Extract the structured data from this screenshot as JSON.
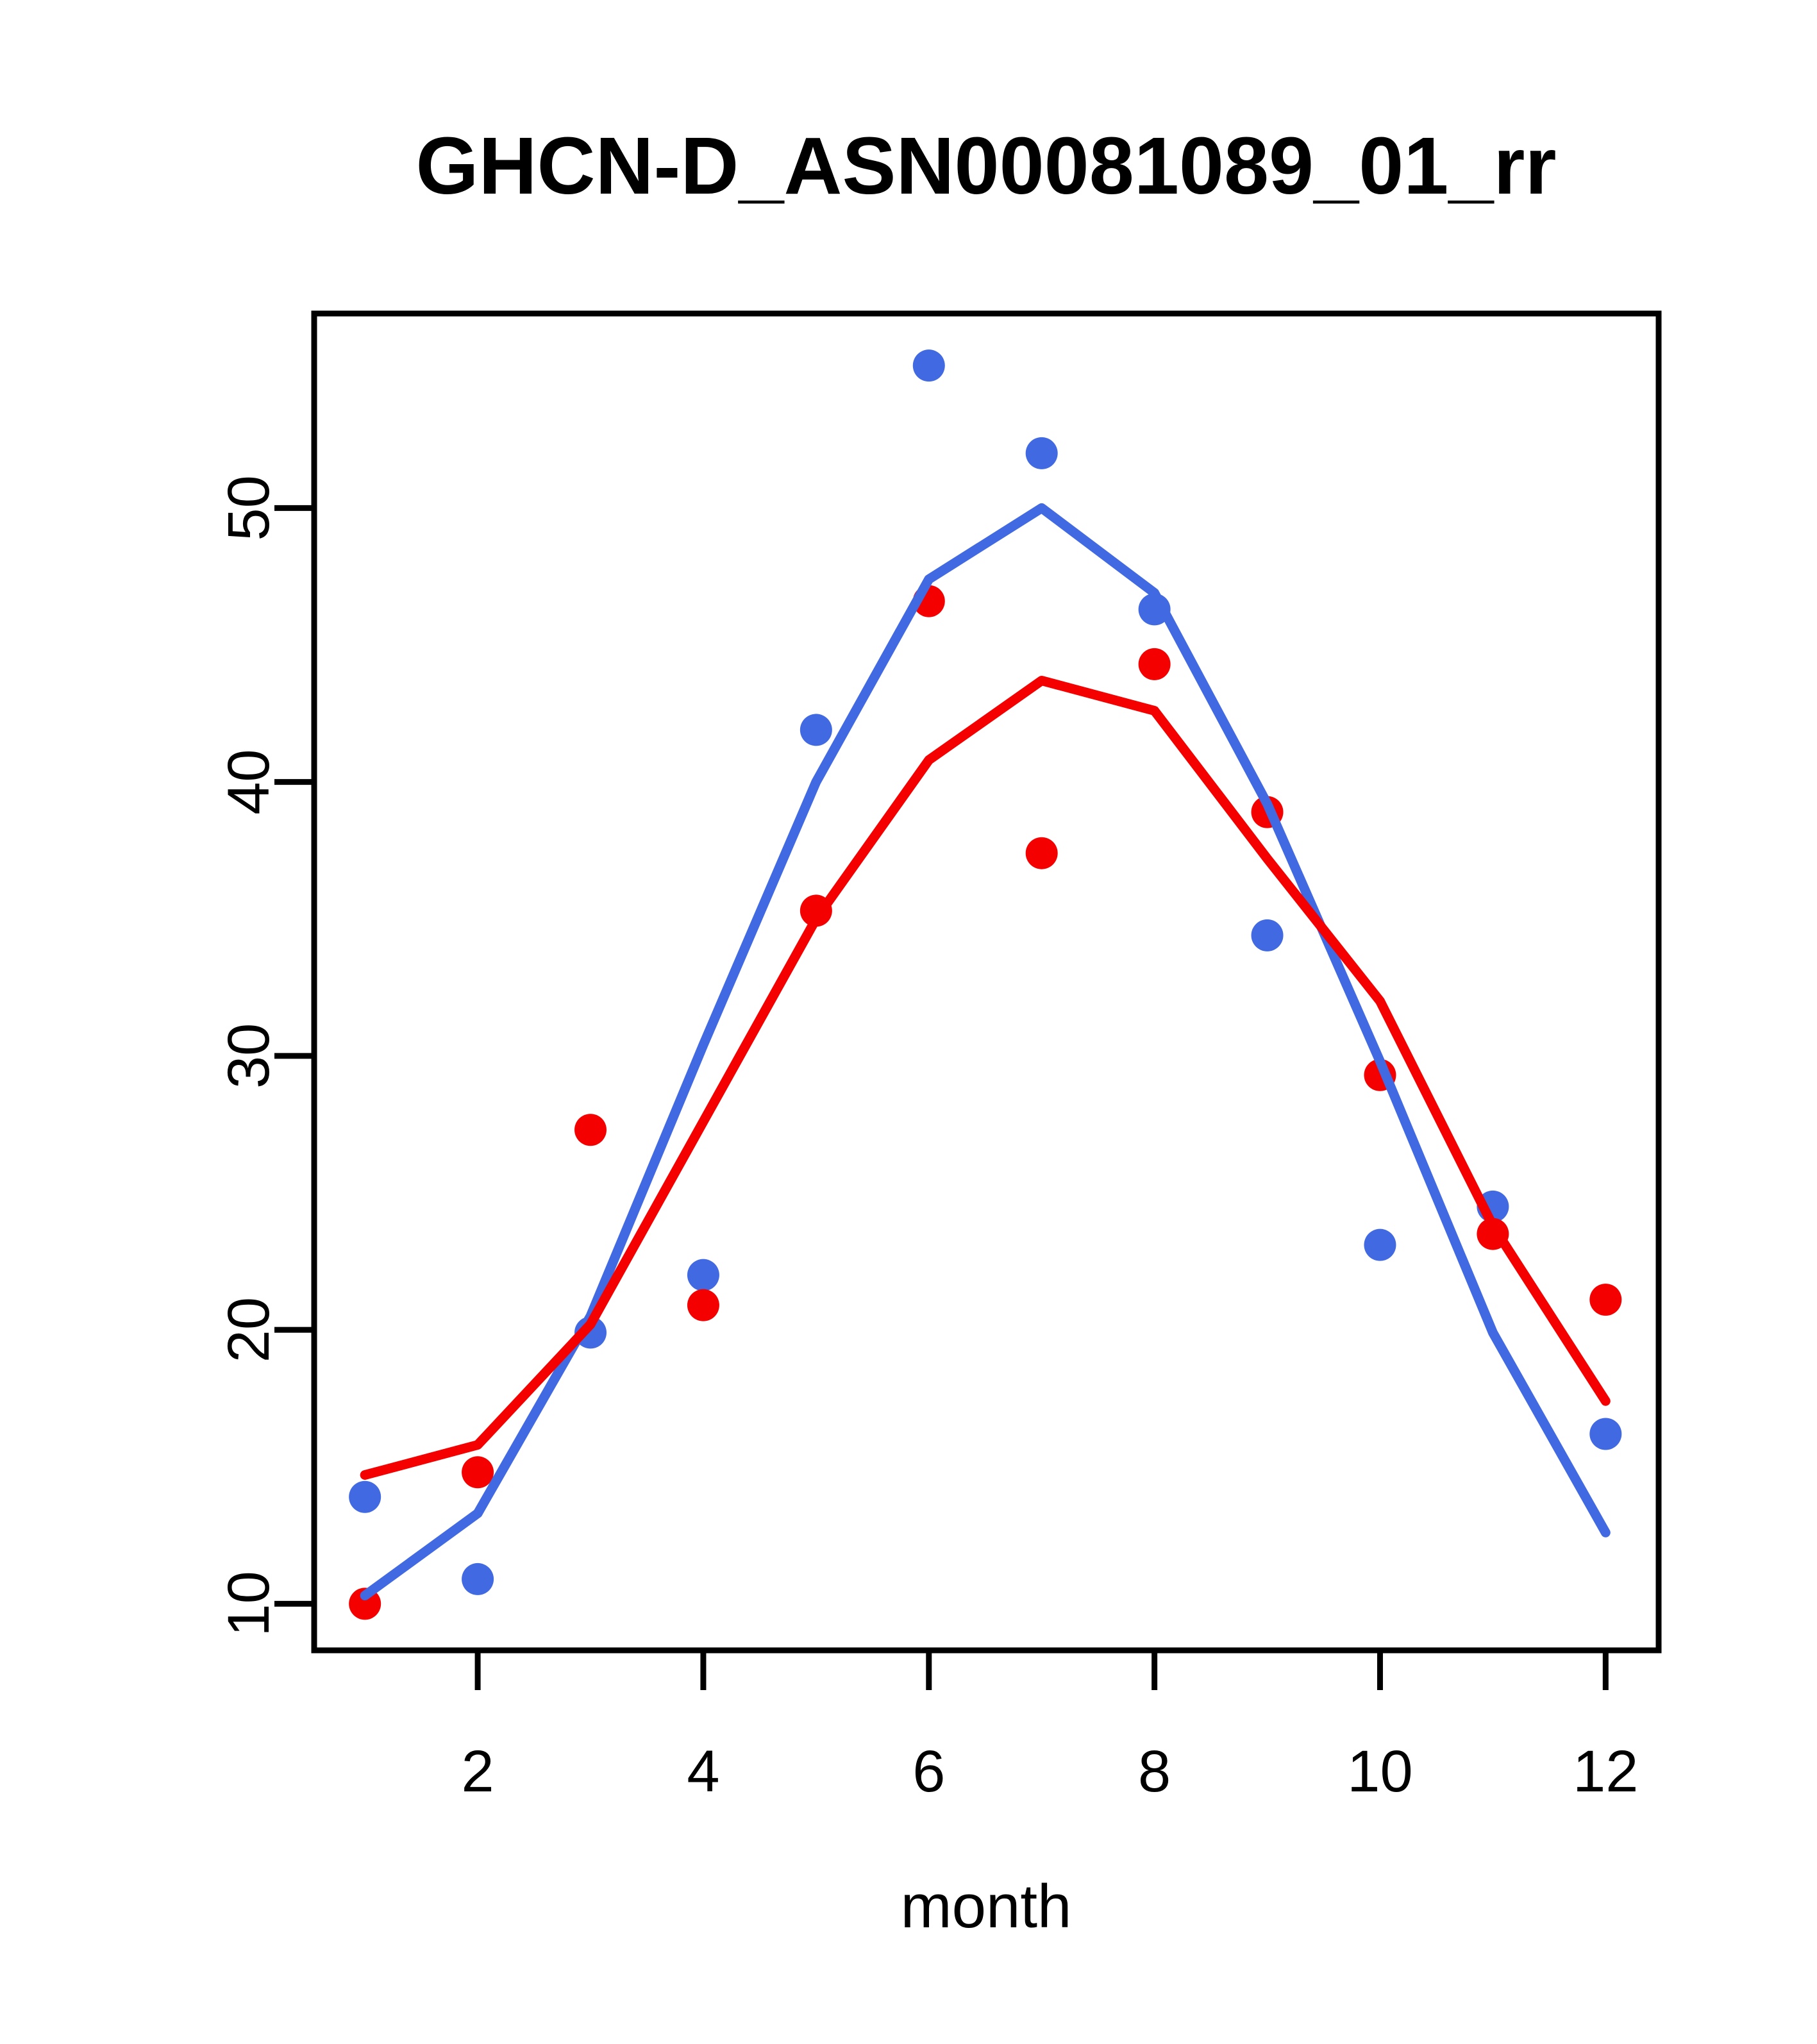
{
  "page": {
    "background": "#ffffff",
    "text_color": "#000000"
  },
  "chart_data": {
    "type": "line+scatter",
    "title": "GHCN-D_ASN00081089_01_rr",
    "xlabel": "month",
    "ylabel": "",
    "x": [
      1,
      2,
      3,
      4,
      5,
      6,
      7,
      8,
      9,
      10,
      11,
      12
    ],
    "xticks": [
      2,
      4,
      6,
      8,
      10,
      12
    ],
    "yticks": [
      10,
      20,
      30,
      40,
      50
    ],
    "xlim": [
      0.55,
      12.47
    ],
    "ylim": [
      8.3,
      57.1
    ],
    "grid": false,
    "legend_position": "none",
    "series": [
      {
        "name": "blue-monthly-points",
        "kind": "scatter",
        "color": "#4169E1",
        "values": [
          13.9,
          10.9,
          19.9,
          22.0,
          41.9,
          55.2,
          52.0,
          46.3,
          34.4,
          23.1,
          24.5,
          16.2
        ]
      },
      {
        "name": "red-monthly-points",
        "kind": "scatter",
        "color": "#F50000",
        "values": [
          10.0,
          14.8,
          27.3,
          20.9,
          35.3,
          46.6,
          37.4,
          44.3,
          38.9,
          29.3,
          23.5,
          21.1
        ]
      },
      {
        "name": "blue-monthly-line",
        "kind": "line",
        "color": "#4169E1",
        "values": [
          10.3,
          13.3,
          20.5,
          30.4,
          40.0,
          47.4,
          50.0,
          46.9,
          39.2,
          29.8,
          19.9,
          12.6
        ]
      },
      {
        "name": "red-monthly-line",
        "kind": "line",
        "color": "#F50000",
        "values": [
          14.7,
          15.8,
          20.2,
          27.6,
          35.0,
          40.8,
          43.7,
          42.6,
          37.2,
          32.0,
          23.8,
          17.4
        ]
      }
    ]
  }
}
